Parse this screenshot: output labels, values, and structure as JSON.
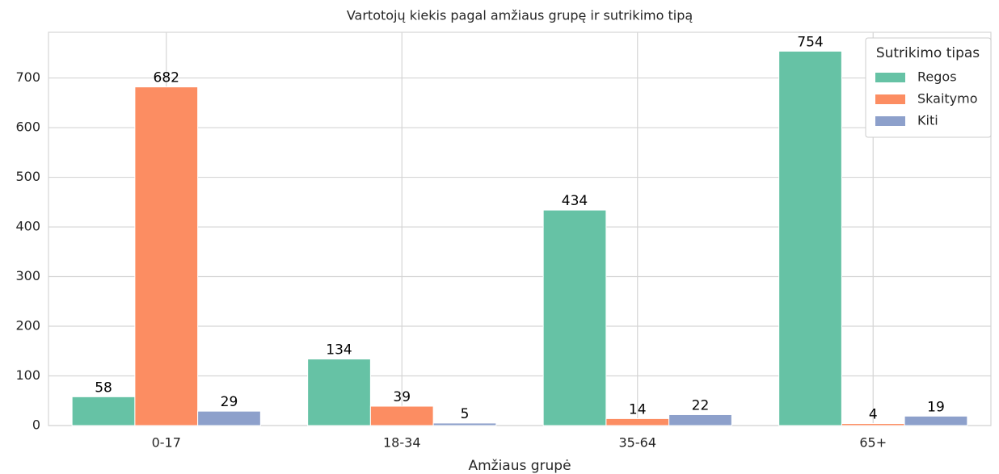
{
  "chart_data": {
    "type": "bar",
    "title": "Vartotojų kiekis pagal amžiaus grupę ir sutrikimo tipą",
    "xlabel": "Amžiaus grupė",
    "categories": [
      "0-17",
      "18-34",
      "35-64",
      "65+"
    ],
    "series": [
      {
        "name": "Regos",
        "color": "#66c2a5",
        "values": [
          58,
          134,
          434,
          754
        ]
      },
      {
        "name": "Skaitymo",
        "color": "#fc8d62",
        "values": [
          682,
          39,
          14,
          4
        ]
      },
      {
        "name": "Kiti",
        "color": "#8da0cb",
        "values": [
          29,
          5,
          22,
          19
        ]
      }
    ],
    "ylim": [
      0,
      792
    ],
    "yticks": [
      0,
      100,
      200,
      300,
      400,
      500,
      600,
      700
    ],
    "grid": true,
    "legend_title": "Sutrikimo tipas",
    "legend_position": "upper right"
  }
}
